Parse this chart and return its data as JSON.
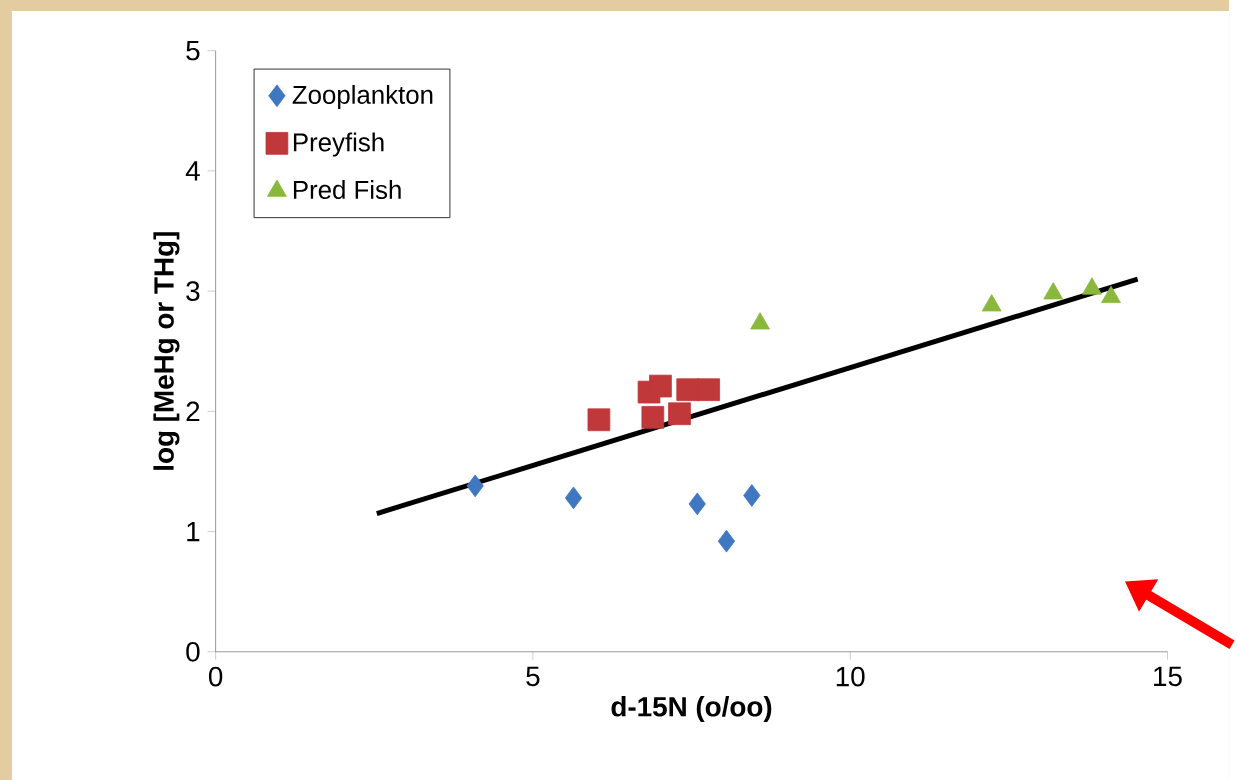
{
  "chart_data": {
    "type": "scatter",
    "xlabel": "d-15N (o/oo)",
    "ylabel": "log [MeHg or THg]",
    "xlim": [
      0,
      15
    ],
    "ylim": [
      0,
      5
    ],
    "xticks": [
      0,
      5,
      10,
      15
    ],
    "yticks": [
      0,
      1,
      2,
      3,
      4,
      5
    ],
    "grid": false,
    "legend": "top left",
    "series": [
      {
        "name": "Zooplankton",
        "color": "#3f78c0",
        "marker": "diamond",
        "x": [
          4.09,
          5.64,
          7.59,
          8.05,
          8.45
        ],
        "values": [
          1.38,
          1.28,
          1.23,
          0.92,
          1.3
        ]
      },
      {
        "name": "Preyfish",
        "color": "#c0383a",
        "marker": "square",
        "x": [
          6.04,
          6.83,
          6.89,
          7.01,
          7.31,
          7.44,
          7.77
        ],
        "values": [
          1.93,
          2.16,
          1.95,
          2.21,
          1.98,
          2.18,
          2.18
        ]
      },
      {
        "name": "Pred Fish",
        "color": "#8ab83c",
        "marker": "triangle",
        "x": [
          8.58,
          12.23,
          13.2,
          13.81,
          14.11
        ],
        "values": [
          2.73,
          2.88,
          2.98,
          3.02,
          2.95
        ]
      },
      {
        "type": "line",
        "color": "#000000",
        "marker": "none",
        "x": [
          2.54,
          14.53
        ],
        "values": [
          1.15,
          3.1
        ]
      }
    ]
  }
}
